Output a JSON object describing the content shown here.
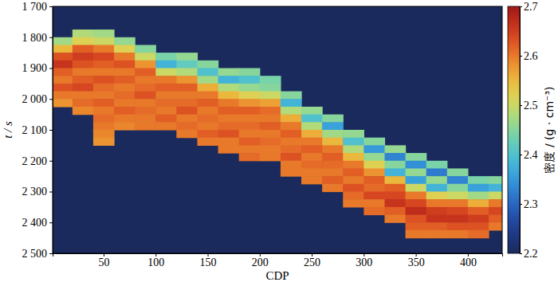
{
  "chart_data": {
    "type": "heatmap",
    "x_label": "CDP",
    "y_label": "t / s",
    "colorbar_label": "密度 / (g · cm⁻³)",
    "xlim": [
      1,
      433
    ],
    "xticks": [
      50,
      100,
      150,
      200,
      250,
      300,
      350,
      400
    ],
    "ylim": [
      1700,
      2500
    ],
    "yticks": [
      {
        "value": 1700,
        "label": "1 700"
      },
      {
        "value": 1800,
        "label": "1 800"
      },
      {
        "value": 1900,
        "label": "1 900"
      },
      {
        "value": 2000,
        "label": "2 000"
      },
      {
        "value": 2100,
        "label": "2 100"
      },
      {
        "value": 2200,
        "label": "2 200"
      },
      {
        "value": 2300,
        "label": "2 300"
      },
      {
        "value": 2400,
        "label": "2 400"
      },
      {
        "value": 2500,
        "label": "2 500"
      }
    ],
    "colorbar_lim": [
      2.2,
      2.7
    ],
    "colorbar_ticks": [
      2.2,
      2.3,
      2.4,
      2.5,
      2.6,
      2.7
    ],
    "x": [
      10,
      30,
      50,
      70,
      90,
      110,
      130,
      150,
      170,
      190,
      210,
      230,
      250,
      270,
      290,
      310,
      330,
      350,
      370,
      390,
      410,
      430
    ],
    "y": [
      1712.5,
      1737.5,
      1762.5,
      1787.5,
      1812.5,
      1837.5,
      1862.5,
      1887.5,
      1912.5,
      1937.5,
      1962.5,
      1987.5,
      2012.5,
      2037.5,
      2062.5,
      2087.5,
      2112.5,
      2137.5,
      2162.5,
      2187.5,
      2212.5,
      2237.5,
      2262.5,
      2287.5,
      2312.5,
      2337.5,
      2362.5,
      2387.5,
      2412.5,
      2437.5,
      2462.5,
      2487.5
    ],
    "values": [
      [
        null,
        null,
        null,
        null,
        null,
        null,
        null,
        null,
        null,
        null,
        null,
        null,
        null,
        null,
        null,
        null,
        null,
        null,
        null,
        null,
        null,
        null
      ],
      [
        null,
        null,
        null,
        null,
        null,
        null,
        null,
        null,
        null,
        null,
        null,
        null,
        null,
        null,
        null,
        null,
        null,
        null,
        null,
        null,
        null,
        null
      ],
      [
        null,
        null,
        null,
        null,
        null,
        null,
        null,
        null,
        null,
        null,
        null,
        null,
        null,
        null,
        null,
        null,
        null,
        null,
        null,
        null,
        null,
        null
      ],
      [
        null,
        2.48,
        2.47,
        null,
        null,
        null,
        null,
        null,
        null,
        null,
        null,
        null,
        null,
        null,
        null,
        null,
        null,
        null,
        null,
        null,
        null,
        null
      ],
      [
        2.47,
        2.52,
        2.5,
        2.46,
        null,
        null,
        null,
        null,
        null,
        null,
        null,
        null,
        null,
        null,
        null,
        null,
        null,
        null,
        null,
        null,
        null,
        null
      ],
      [
        2.55,
        2.62,
        2.6,
        2.52,
        2.45,
        null,
        null,
        null,
        null,
        null,
        null,
        null,
        null,
        null,
        null,
        null,
        null,
        null,
        null,
        null,
        null,
        null
      ],
      [
        2.63,
        2.65,
        2.64,
        2.6,
        2.5,
        2.44,
        2.46,
        null,
        null,
        null,
        null,
        null,
        null,
        null,
        null,
        null,
        null,
        null,
        null,
        null,
        null,
        null
      ],
      [
        2.66,
        2.63,
        2.62,
        2.63,
        2.58,
        2.38,
        2.42,
        2.45,
        null,
        null,
        null,
        null,
        null,
        null,
        null,
        null,
        null,
        null,
        null,
        null,
        null,
        null
      ],
      [
        2.62,
        2.6,
        2.6,
        2.6,
        2.62,
        2.5,
        2.48,
        2.4,
        2.46,
        2.45,
        null,
        null,
        null,
        null,
        null,
        null,
        null,
        null,
        null,
        null,
        null,
        null
      ],
      [
        2.6,
        2.62,
        2.63,
        2.62,
        2.6,
        2.6,
        2.58,
        2.47,
        2.38,
        2.4,
        2.44,
        null,
        null,
        null,
        null,
        null,
        null,
        null,
        null,
        null,
        null,
        null
      ],
      [
        2.63,
        2.64,
        2.61,
        2.6,
        2.61,
        2.62,
        2.62,
        2.56,
        2.48,
        2.46,
        2.45,
        null,
        null,
        null,
        null,
        null,
        null,
        null,
        null,
        null,
        null,
        null
      ],
      [
        2.6,
        2.6,
        2.6,
        2.61,
        2.63,
        2.6,
        2.6,
        2.6,
        2.55,
        2.52,
        2.5,
        2.45,
        null,
        null,
        null,
        null,
        null,
        null,
        null,
        null,
        null,
        null
      ],
      [
        2.58,
        2.61,
        2.62,
        2.6,
        2.6,
        2.61,
        2.61,
        2.62,
        2.6,
        2.58,
        2.57,
        2.38,
        null,
        null,
        null,
        null,
        null,
        null,
        null,
        null,
        null,
        null
      ],
      [
        null,
        2.59,
        2.6,
        2.62,
        2.61,
        2.6,
        2.63,
        2.6,
        2.62,
        2.62,
        2.61,
        2.48,
        2.46,
        null,
        null,
        null,
        null,
        null,
        null,
        null,
        null,
        null
      ],
      [
        null,
        null,
        2.61,
        2.6,
        2.6,
        2.62,
        2.6,
        2.61,
        2.6,
        2.6,
        2.6,
        2.56,
        2.4,
        2.45,
        null,
        null,
        null,
        null,
        null,
        null,
        null,
        null
      ],
      [
        null,
        null,
        2.6,
        2.59,
        2.6,
        2.6,
        2.61,
        2.6,
        2.61,
        2.61,
        2.62,
        2.6,
        2.48,
        2.36,
        null,
        null,
        null,
        null,
        null,
        null,
        null,
        null
      ],
      [
        null,
        null,
        2.59,
        null,
        null,
        null,
        2.6,
        2.62,
        2.63,
        2.6,
        2.6,
        2.62,
        2.56,
        2.47,
        2.46,
        null,
        null,
        null,
        null,
        null,
        null,
        null
      ],
      [
        null,
        null,
        2.58,
        null,
        null,
        null,
        null,
        2.6,
        2.6,
        2.62,
        2.61,
        2.6,
        2.6,
        2.55,
        2.4,
        2.45,
        null,
        null,
        null,
        null,
        null,
        null
      ],
      [
        null,
        null,
        null,
        null,
        null,
        null,
        null,
        null,
        2.6,
        2.6,
        2.6,
        2.61,
        2.62,
        2.6,
        2.48,
        2.35,
        2.46,
        null,
        null,
        null,
        null,
        null
      ],
      [
        null,
        null,
        null,
        null,
        null,
        null,
        null,
        null,
        null,
        2.61,
        2.6,
        2.63,
        2.6,
        2.62,
        2.55,
        2.46,
        2.33,
        2.45,
        null,
        null,
        null,
        null
      ],
      [
        null,
        null,
        null,
        null,
        null,
        null,
        null,
        null,
        null,
        null,
        null,
        2.6,
        2.61,
        2.61,
        2.6,
        2.52,
        2.45,
        2.34,
        2.44,
        null,
        null,
        null
      ],
      [
        null,
        null,
        null,
        null,
        null,
        null,
        null,
        null,
        null,
        null,
        null,
        2.6,
        2.6,
        2.6,
        2.62,
        2.58,
        2.38,
        2.46,
        2.32,
        2.45,
        null,
        null
      ],
      [
        null,
        null,
        null,
        null,
        null,
        null,
        null,
        null,
        null,
        null,
        null,
        null,
        2.6,
        2.62,
        2.6,
        2.62,
        2.55,
        2.36,
        2.46,
        2.33,
        2.44,
        2.45
      ],
      [
        null,
        null,
        null,
        null,
        null,
        null,
        null,
        null,
        null,
        null,
        null,
        null,
        null,
        2.6,
        2.63,
        2.61,
        2.62,
        2.5,
        2.38,
        2.45,
        2.36,
        2.38
      ],
      [
        null,
        null,
        null,
        null,
        null,
        null,
        null,
        null,
        null,
        null,
        null,
        null,
        null,
        null,
        2.61,
        2.64,
        2.64,
        2.6,
        2.52,
        2.5,
        2.47,
        2.5
      ],
      [
        null,
        null,
        null,
        null,
        null,
        null,
        null,
        null,
        null,
        null,
        null,
        null,
        null,
        null,
        2.6,
        2.6,
        2.66,
        2.64,
        2.6,
        2.6,
        2.56,
        2.6
      ],
      [
        null,
        null,
        null,
        null,
        null,
        null,
        null,
        null,
        null,
        null,
        null,
        null,
        null,
        null,
        null,
        2.61,
        2.62,
        2.67,
        2.65,
        2.64,
        2.62,
        2.64
      ],
      [
        null,
        null,
        null,
        null,
        null,
        null,
        null,
        null,
        null,
        null,
        null,
        null,
        null,
        null,
        null,
        null,
        2.6,
        2.63,
        2.66,
        2.66,
        2.65,
        2.62
      ],
      [
        null,
        null,
        null,
        null,
        null,
        null,
        null,
        null,
        null,
        null,
        null,
        null,
        null,
        null,
        null,
        null,
        null,
        2.62,
        2.62,
        2.63,
        2.63,
        2.6
      ],
      [
        null,
        null,
        null,
        null,
        null,
        null,
        null,
        null,
        null,
        null,
        null,
        null,
        null,
        null,
        null,
        null,
        null,
        2.6,
        2.6,
        2.6,
        2.61,
        null
      ],
      [
        null,
        null,
        null,
        null,
        null,
        null,
        null,
        null,
        null,
        null,
        null,
        null,
        null,
        null,
        null,
        null,
        null,
        null,
        null,
        null,
        null,
        null
      ],
      [
        null,
        null,
        null,
        null,
        null,
        null,
        null,
        null,
        null,
        null,
        null,
        null,
        null,
        null,
        null,
        null,
        null,
        null,
        null,
        null,
        null,
        null
      ]
    ]
  }
}
